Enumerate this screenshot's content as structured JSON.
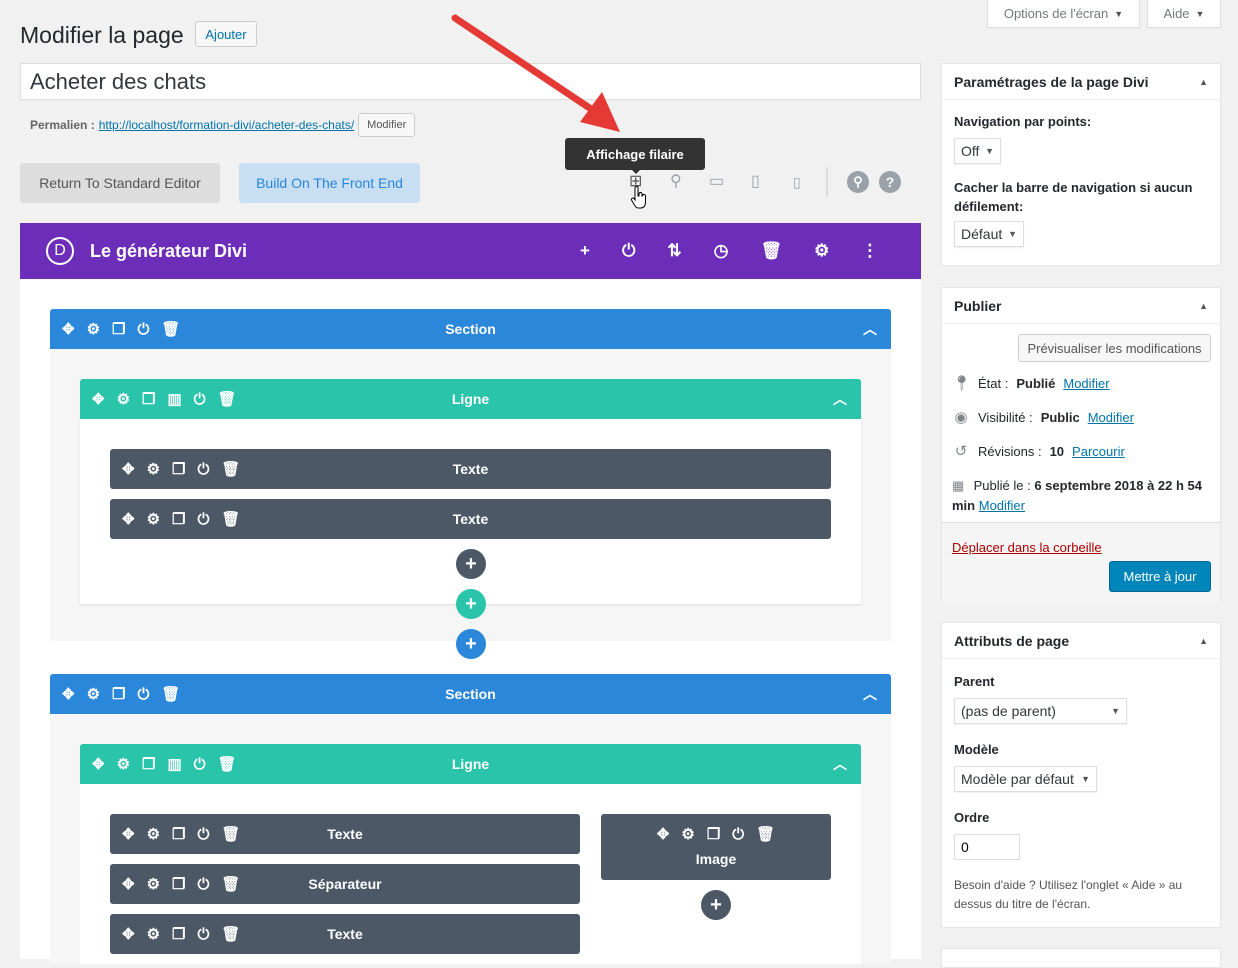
{
  "header": {
    "title": "Modifier la page",
    "add_label": "Ajouter",
    "screen_options": "Options de l'écran",
    "help": "Aide"
  },
  "post": {
    "title": "Acheter des chats",
    "permalink_label": "Permalien :",
    "permalink_url": "http://localhost/formation-divi/acheter-des-chats/",
    "permalink_edit": "Modifier"
  },
  "editor": {
    "standard": "Return To Standard Editor",
    "frontend": "Build On The Front End",
    "tooltip": "Affichage filaire"
  },
  "builder": {
    "logo": "D",
    "title": "Le générateur Divi",
    "accent": "#6c2eb9"
  },
  "layout": {
    "sections": [
      {
        "label": "Section",
        "rows": [
          {
            "label": "Ligne",
            "col1": [
              "Texte",
              "Texte"
            ]
          }
        ]
      },
      {
        "label": "Section",
        "rows": [
          {
            "label": "Ligne",
            "col1": [
              "Texte",
              "Séparateur",
              "Texte"
            ],
            "col2": [
              "Image"
            ]
          }
        ]
      }
    ]
  },
  "colors": {
    "section": "#2b87da",
    "row": "#29c4a9",
    "module": "#4c5866",
    "primary": "#0085ba"
  },
  "sidebar": {
    "divi_settings": {
      "title": "Paramétrages de la page Divi",
      "dot_nav_label": "Navigation par points:",
      "dot_nav_value": "Off",
      "hide_nav_label": "Cacher la barre de navigation si aucun défilement:",
      "hide_nav_value": "Défaut"
    },
    "publish": {
      "title": "Publier",
      "preview": "Prévisualiser les modifications",
      "status_label": "État :",
      "status_value": "Publié",
      "status_edit": "Modifier",
      "visibility_label": "Visibilité :",
      "visibility_value": "Public",
      "visibility_edit": "Modifier",
      "revisions_label": "Révisions :",
      "revisions_value": "10",
      "revisions_link": "Parcourir",
      "date_label": "Publié le :",
      "date_value": "6 septembre 2018 à 22 h 54 min",
      "date_edit": "Modifier",
      "trash": "Déplacer dans la corbeille",
      "update": "Mettre à jour"
    },
    "attributes": {
      "title": "Attributs de page",
      "parent_label": "Parent",
      "parent_value": "(pas de parent)",
      "template_label": "Modèle",
      "template_value": "Modèle par défaut",
      "order_label": "Ordre",
      "order_value": "0",
      "help": "Besoin d'aide ? Utilisez l'onglet « Aide » au dessus du titre de l'écran."
    }
  }
}
